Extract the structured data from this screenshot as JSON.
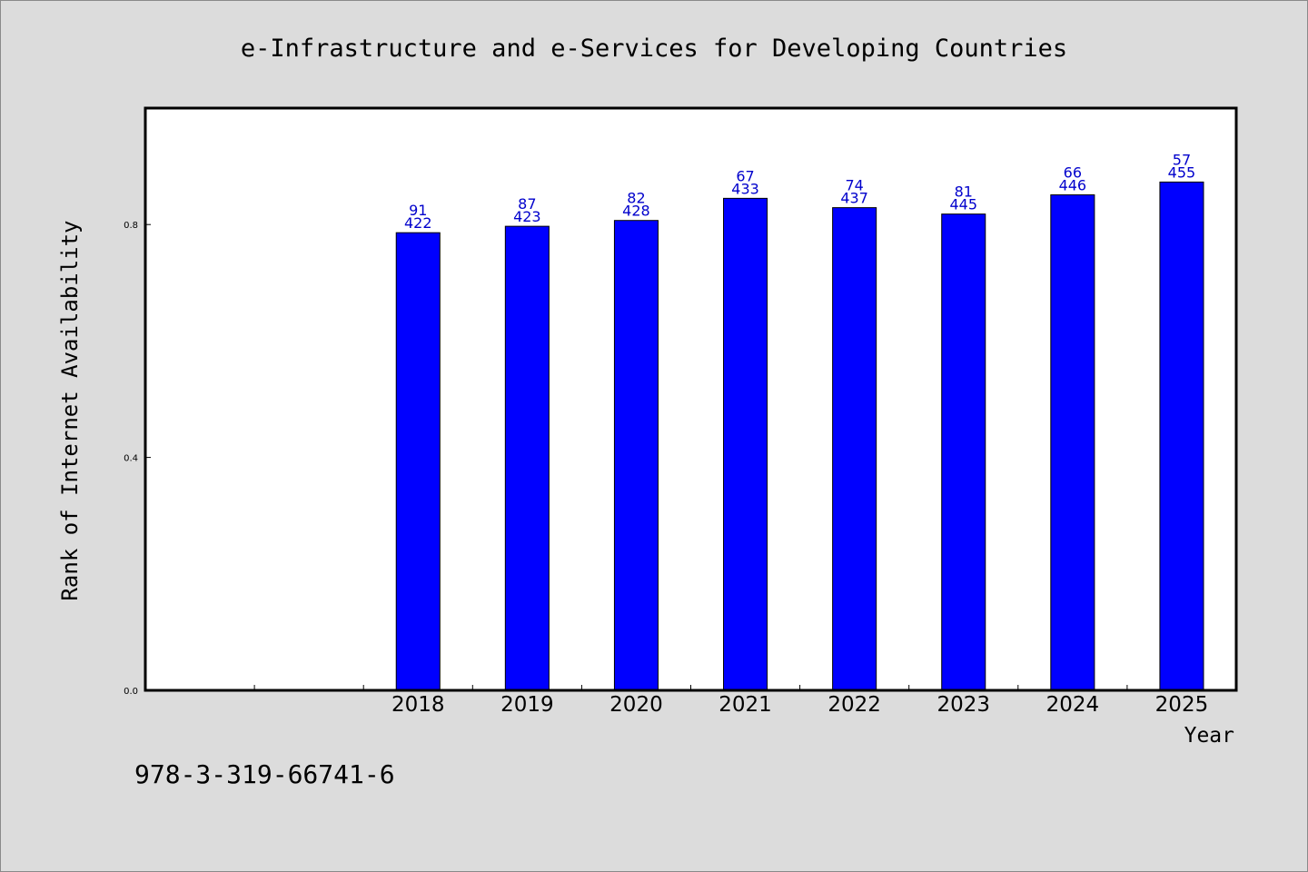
{
  "chart_data": {
    "type": "bar",
    "title": "e-Infrastructure and e-Services for Developing Countries",
    "xlabel": "Year",
    "ylabel": "Rank of Internet Availability",
    "categories": [
      "",
      "",
      "2018",
      "2019",
      "2020",
      "2021",
      "2022",
      "2023",
      "2024",
      "2025"
    ],
    "values": [
      null,
      null,
      0.786,
      0.797,
      0.807,
      0.845,
      0.829,
      0.818,
      0.851,
      0.873
    ],
    "data_labels_top": [
      "",
      "",
      "91",
      "87",
      "82",
      "67",
      "74",
      "81",
      "66",
      "57"
    ],
    "data_labels_bottom": [
      "",
      "",
      "422",
      "423",
      "428",
      "433",
      "437",
      "445",
      "446",
      "455"
    ],
    "ylim": [
      0,
      1.0
    ],
    "yticks": [
      0.0,
      0.4,
      0.8
    ],
    "ytick_labels": [
      "0.0",
      "0.4",
      "0.8"
    ],
    "bar_color": "#0000ff",
    "label_color": "#0000cc",
    "grid": false,
    "legend": "none"
  },
  "footer": {
    "isbn": "978-3-319-66741-6"
  }
}
